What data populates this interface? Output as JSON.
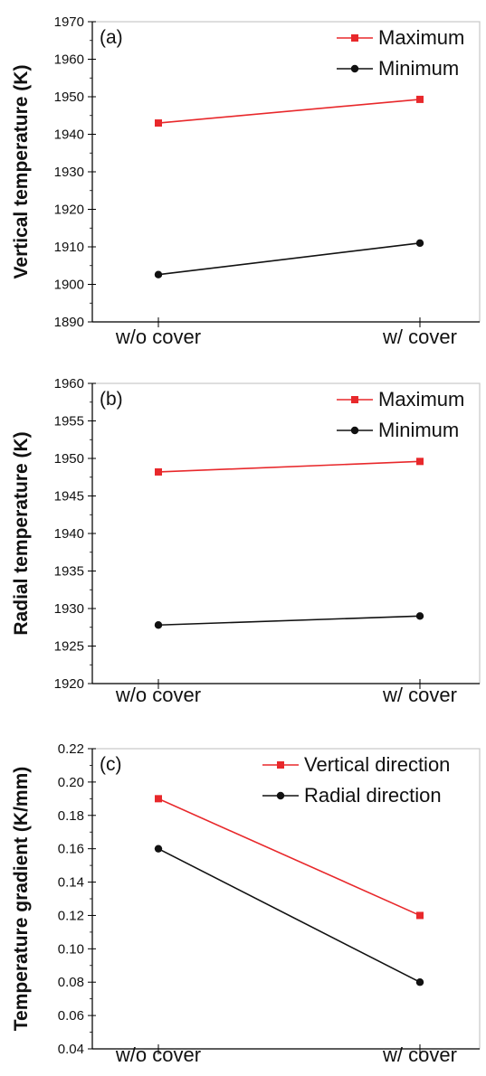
{
  "colors": {
    "maximum": "#e8282b",
    "minimum": "#111111",
    "axis": "#000000",
    "frame": "#c8c8c8"
  },
  "chart_data": [
    {
      "panel": "(a)",
      "type": "line",
      "categories": [
        "w/o cover",
        "w/ cover"
      ],
      "ylabel": "Vertical temperature (K)",
      "ylim": [
        1890,
        1970
      ],
      "yticks": [
        "1890",
        "1900",
        "1910",
        "1920",
        "1930",
        "1940",
        "1950",
        "1960",
        "1970"
      ],
      "legend_position": "top-right",
      "series": [
        {
          "name": "Maximum",
          "marker": "square",
          "color": "#e8282b",
          "values": [
            1943,
            1949.3
          ]
        },
        {
          "name": "Minimum",
          "marker": "circle",
          "color": "#111111",
          "values": [
            1902.6,
            1911
          ]
        }
      ]
    },
    {
      "panel": "(b)",
      "type": "line",
      "categories": [
        "w/o cover",
        "w/ cover"
      ],
      "ylabel": "Radial temperature (K)",
      "ylim": [
        1920,
        1960
      ],
      "yticks": [
        "1920",
        "1925",
        "1930",
        "1935",
        "1940",
        "1945",
        "1950",
        "1955",
        "1960"
      ],
      "legend_position": "top-right",
      "series": [
        {
          "name": "Maximum",
          "marker": "square",
          "color": "#e8282b",
          "values": [
            1948.2,
            1949.6
          ]
        },
        {
          "name": "Minimum",
          "marker": "circle",
          "color": "#111111",
          "values": [
            1927.8,
            1929
          ]
        }
      ]
    },
    {
      "panel": "(c)",
      "type": "line",
      "categories": [
        "w/o cover",
        "w/ cover"
      ],
      "ylabel": "Temperature gradient (K/mm)",
      "ylim": [
        0.04,
        0.22
      ],
      "yticks": [
        "0.04",
        "0.06",
        "0.08",
        "0.10",
        "0.12",
        "0.14",
        "0.16",
        "0.18",
        "0.20",
        "0.22"
      ],
      "legend_position": "top-right",
      "series": [
        {
          "name": "Vertical direction",
          "marker": "square",
          "color": "#e8282b",
          "values": [
            0.19,
            0.12
          ]
        },
        {
          "name": "Radial direction",
          "marker": "circle",
          "color": "#111111",
          "values": [
            0.16,
            0.08
          ]
        }
      ]
    }
  ]
}
